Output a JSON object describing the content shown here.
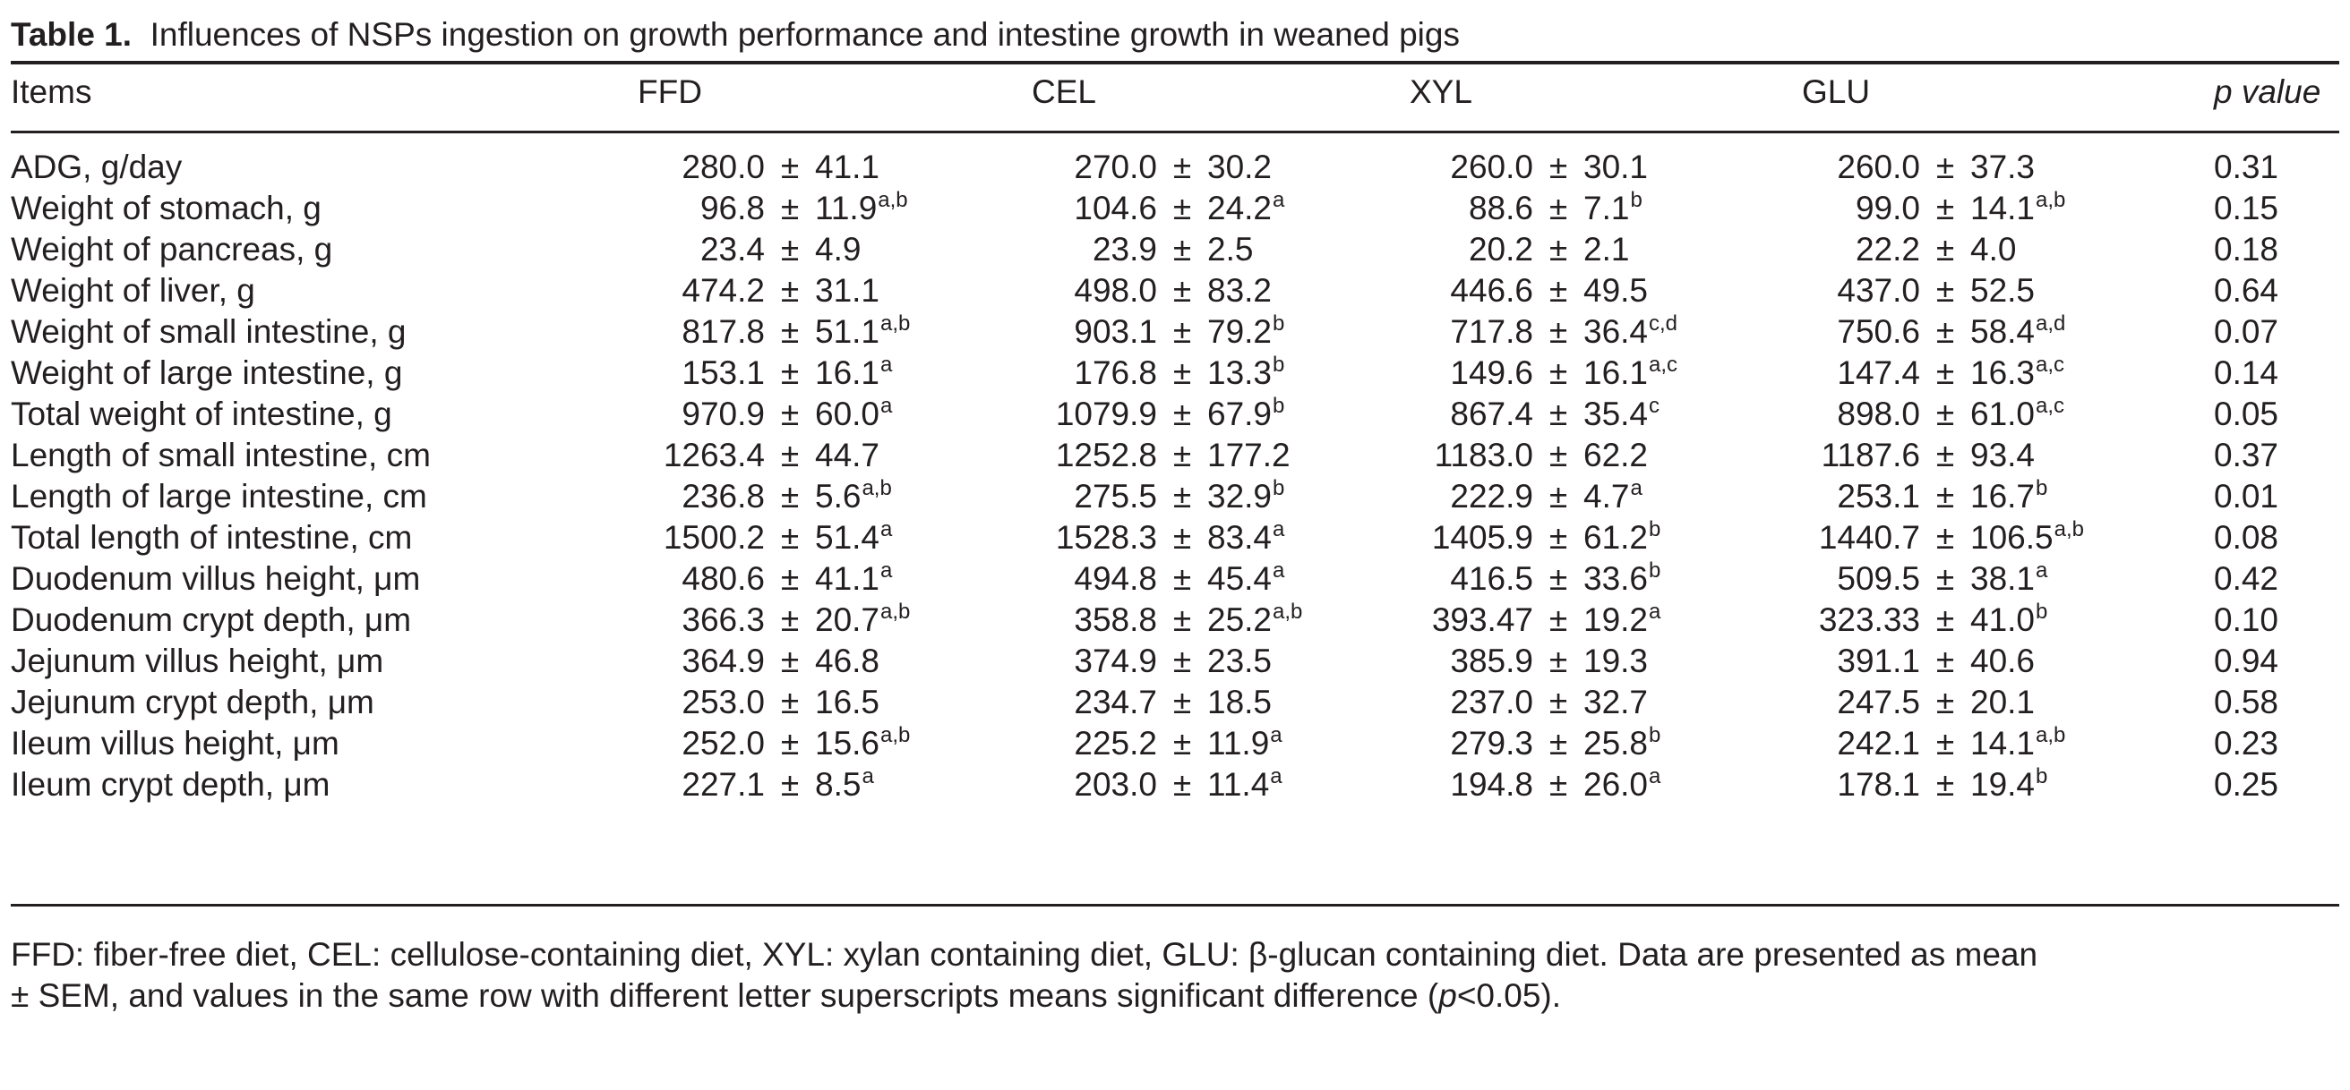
{
  "caption": {
    "label": "Table 1.",
    "text": "Influences of NSPs ingestion on growth performance and intestine growth in weaned pigs"
  },
  "headers": {
    "items": "Items",
    "groups": [
      "FFD",
      "CEL",
      "XYL",
      "GLU"
    ],
    "p_value": "p value"
  },
  "pm_symbol": "±",
  "rows": [
    {
      "item": "ADG, g/day",
      "values": [
        {
          "mean": "280.0",
          "sem": "41.1",
          "sup": ""
        },
        {
          "mean": "270.0",
          "sem": "30.2",
          "sup": ""
        },
        {
          "mean": "260.0",
          "sem": "30.1",
          "sup": ""
        },
        {
          "mean": "260.0",
          "sem": "37.3",
          "sup": ""
        }
      ],
      "p": "0.31"
    },
    {
      "item": "Weight of stomach, g",
      "values": [
        {
          "mean": "96.8",
          "sem": "11.9",
          "sup": "a,b"
        },
        {
          "mean": "104.6",
          "sem": "24.2",
          "sup": "a"
        },
        {
          "mean": "88.6",
          "sem": "7.1",
          "sup": "b"
        },
        {
          "mean": "99.0",
          "sem": "14.1",
          "sup": "a,b"
        }
      ],
      "p": "0.15"
    },
    {
      "item": "Weight of pancreas, g",
      "values": [
        {
          "mean": "23.4",
          "sem": "4.9",
          "sup": ""
        },
        {
          "mean": "23.9",
          "sem": "2.5",
          "sup": ""
        },
        {
          "mean": "20.2",
          "sem": "2.1",
          "sup": ""
        },
        {
          "mean": "22.2",
          "sem": "4.0",
          "sup": ""
        }
      ],
      "p": "0.18"
    },
    {
      "item": "Weight of liver, g",
      "values": [
        {
          "mean": "474.2",
          "sem": "31.1",
          "sup": ""
        },
        {
          "mean": "498.0",
          "sem": "83.2",
          "sup": ""
        },
        {
          "mean": "446.6",
          "sem": "49.5",
          "sup": ""
        },
        {
          "mean": "437.0",
          "sem": "52.5",
          "sup": ""
        }
      ],
      "p": "0.64"
    },
    {
      "item": "Weight of small intestine, g",
      "values": [
        {
          "mean": "817.8",
          "sem": "51.1",
          "sup": "a,b"
        },
        {
          "mean": "903.1",
          "sem": "79.2",
          "sup": "b"
        },
        {
          "mean": "717.8",
          "sem": "36.4",
          "sup": "c,d"
        },
        {
          "mean": "750.6",
          "sem": "58.4",
          "sup": "a,d"
        }
      ],
      "p": "0.07"
    },
    {
      "item": "Weight of large intestine, g",
      "values": [
        {
          "mean": "153.1",
          "sem": "16.1",
          "sup": "a"
        },
        {
          "mean": "176.8",
          "sem": "13.3",
          "sup": "b"
        },
        {
          "mean": "149.6",
          "sem": "16.1",
          "sup": "a,c"
        },
        {
          "mean": "147.4",
          "sem": "16.3",
          "sup": "a,c"
        }
      ],
      "p": "0.14"
    },
    {
      "item": "Total weight of intestine, g",
      "values": [
        {
          "mean": "970.9",
          "sem": "60.0",
          "sup": "a"
        },
        {
          "mean": "1079.9",
          "sem": "67.9",
          "sup": "b"
        },
        {
          "mean": "867.4",
          "sem": "35.4",
          "sup": "c"
        },
        {
          "mean": "898.0",
          "sem": "61.0",
          "sup": "a,c"
        }
      ],
      "p": "0.05"
    },
    {
      "item": "Length of small intestine, cm",
      "values": [
        {
          "mean": "1263.4",
          "sem": "44.7",
          "sup": ""
        },
        {
          "mean": "1252.8",
          "sem": "177.2",
          "sup": ""
        },
        {
          "mean": "1183.0",
          "sem": "62.2",
          "sup": ""
        },
        {
          "mean": "1187.6",
          "sem": "93.4",
          "sup": ""
        }
      ],
      "p": "0.37"
    },
    {
      "item": "Length of large intestine, cm",
      "values": [
        {
          "mean": "236.8",
          "sem": "5.6",
          "sup": "a,b"
        },
        {
          "mean": "275.5",
          "sem": "32.9",
          "sup": "b"
        },
        {
          "mean": "222.9",
          "sem": "4.7",
          "sup": "a"
        },
        {
          "mean": "253.1",
          "sem": "16.7",
          "sup": "b"
        }
      ],
      "p": "0.01"
    },
    {
      "item": "Total length of intestine, cm",
      "values": [
        {
          "mean": "1500.2",
          "sem": "51.4",
          "sup": "a"
        },
        {
          "mean": "1528.3",
          "sem": "83.4",
          "sup": "a"
        },
        {
          "mean": "1405.9",
          "sem": "61.2",
          "sup": "b"
        },
        {
          "mean": "1440.7",
          "sem": "106.5",
          "sup": "a,b"
        }
      ],
      "p": "0.08"
    },
    {
      "item": "Duodenum villus height, μm",
      "values": [
        {
          "mean": "480.6",
          "sem": "41.1",
          "sup": "a"
        },
        {
          "mean": "494.8",
          "sem": "45.4",
          "sup": "a"
        },
        {
          "mean": "416.5",
          "sem": "33.6",
          "sup": "b"
        },
        {
          "mean": "509.5",
          "sem": "38.1",
          "sup": "a"
        }
      ],
      "p": "0.42"
    },
    {
      "item": "Duodenum crypt depth, μm",
      "values": [
        {
          "mean": "366.3",
          "sem": "20.7",
          "sup": "a,b"
        },
        {
          "mean": "358.8",
          "sem": "25.2",
          "sup": "a,b"
        },
        {
          "mean": "393.47",
          "sem": "19.2",
          "sup": "a"
        },
        {
          "mean": "323.33",
          "sem": "41.0",
          "sup": "b"
        }
      ],
      "p": "0.10"
    },
    {
      "item": "Jejunum villus height, μm",
      "values": [
        {
          "mean": "364.9",
          "sem": "46.8",
          "sup": ""
        },
        {
          "mean": "374.9",
          "sem": "23.5",
          "sup": ""
        },
        {
          "mean": "385.9",
          "sem": "19.3",
          "sup": ""
        },
        {
          "mean": "391.1",
          "sem": "40.6",
          "sup": ""
        }
      ],
      "p": "0.94"
    },
    {
      "item": "Jejunum crypt depth, μm",
      "values": [
        {
          "mean": "253.0",
          "sem": "16.5",
          "sup": ""
        },
        {
          "mean": "234.7",
          "sem": "18.5",
          "sup": ""
        },
        {
          "mean": "237.0",
          "sem": "32.7",
          "sup": ""
        },
        {
          "mean": "247.5",
          "sem": "20.1",
          "sup": ""
        }
      ],
      "p": "0.58"
    },
    {
      "item": "Ileum villus height, μm",
      "values": [
        {
          "mean": "252.0",
          "sem": "15.6",
          "sup": "a,b"
        },
        {
          "mean": "225.2",
          "sem": "11.9",
          "sup": "a"
        },
        {
          "mean": "279.3",
          "sem": "25.8",
          "sup": "b"
        },
        {
          "mean": "242.1",
          "sem": "14.1",
          "sup": "a,b"
        }
      ],
      "p": "0.23"
    },
    {
      "item": "Ileum crypt depth, μm",
      "values": [
        {
          "mean": "227.1",
          "sem": "8.5",
          "sup": "a"
        },
        {
          "mean": "203.0",
          "sem": "11.4",
          "sup": "a"
        },
        {
          "mean": "194.8",
          "sem": "26.0",
          "sup": "a"
        },
        {
          "mean": "178.1",
          "sem": "19.4",
          "sup": "b"
        }
      ],
      "p": "0.25"
    }
  ],
  "footnote": {
    "line1": "FFD: fiber-free diet, CEL: cellulose-containing diet, XYL: xylan containing diet, GLU: β-glucan containing diet. Data are presented as mean",
    "line2_a": "± SEM, and values in the same row with different letter superscripts means significant difference (",
    "line2_p": "p",
    "line2_b": "<0.05)."
  }
}
